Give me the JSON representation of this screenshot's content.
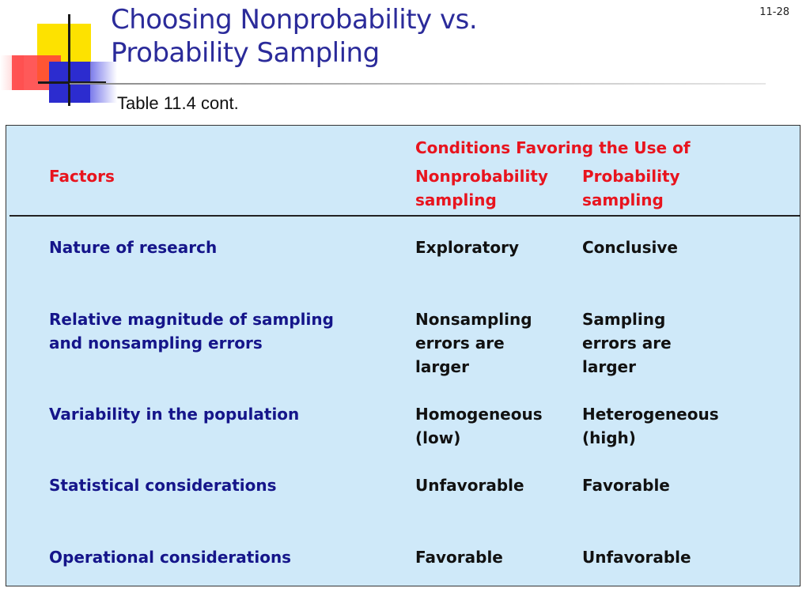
{
  "slide": {
    "title_line1": "Choosing Nonprobability vs.",
    "title_line2": "Probability Sampling",
    "number": "11-28",
    "subtitle": "Table 11.4 cont."
  },
  "table": {
    "header": {
      "group": "Conditions Favoring the Use of",
      "factors": "Factors",
      "col1": "Nonprobability\nsampling",
      "col2": "Probability\nsampling"
    },
    "rows": [
      {
        "factor": "Nature of research",
        "nonprob": "Exploratory",
        "prob": "Conclusive"
      },
      {
        "factor": "Relative magnitude of sampling\nand nonsampling errors",
        "nonprob": "Nonsampling\nerrors are\nlarger",
        "prob": "Sampling\nerrors are\nlarger"
      },
      {
        "factor": "Variability in the population",
        "nonprob": "Homogeneous\n(low)",
        "prob": "Heterogeneous\n(high)"
      },
      {
        "factor": "Statistical considerations",
        "nonprob": "Unfavorable",
        "prob": "Favorable"
      },
      {
        "factor": "Operational considerations",
        "nonprob": "Favorable",
        "prob": "Unfavorable"
      }
    ]
  },
  "colors": {
    "title": "#2b2b9a",
    "header_text": "#e8141e",
    "factor_text": "#15158a",
    "table_bg": "#cfe9f9"
  }
}
